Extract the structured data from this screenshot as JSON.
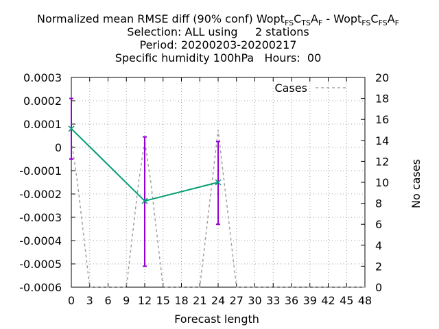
{
  "chart_data": {
    "type": "line",
    "title": {
      "line1_main": "Normalized mean RMSE diff (90% conf) Wopt",
      "line1_sub1a": "FS",
      "line1_mid1": "C",
      "line1_sub1b": "TS",
      "line1_mid2": "A",
      "line1_sub1c": "F",
      "line1_sep": " - Wopt",
      "line1_sub2a": "FS",
      "line1_mid3": "C",
      "line1_sub2b": "FS",
      "line1_mid4": "A",
      "line1_sub2c": "F",
      "line2": "Selection: ALL using     2 stations",
      "line3": "Period: 20200203-20200217",
      "line4": "Specific humidity 100hPa   Hours:  00"
    },
    "xlabel": "Forecast length",
    "ylabel_right": "No cases",
    "x_ticks": [
      "0",
      "3",
      "6",
      "9",
      "12",
      "15",
      "18",
      "21",
      "24",
      "27",
      "30",
      "33",
      "36",
      "39",
      "42",
      "45",
      "48"
    ],
    "y_ticks_left": [
      "0.0003",
      "0.0002",
      "0.0001",
      "0",
      "-0.0001",
      "-0.0002",
      "-0.0003",
      "-0.0004",
      "-0.0005",
      "-0.0006"
    ],
    "y_ticks_right": [
      "20",
      "18",
      "16",
      "14",
      "12",
      "10",
      "8",
      "6",
      "4",
      "2",
      "0"
    ],
    "xlim": [
      0,
      48
    ],
    "ylim_left": [
      -0.0006,
      0.0003
    ],
    "ylim_right": [
      0,
      20
    ],
    "grid": true,
    "legend_position": "top-right",
    "series": [
      {
        "name": "",
        "color": "#009e73",
        "error_color": "#9400d3",
        "x": [
          0,
          12,
          24
        ],
        "y": [
          8e-05,
          -0.00023,
          -0.00015
        ],
        "err_low": [
          -5e-05,
          -0.00051,
          -0.00033
        ],
        "err_high": [
          0.00021,
          4.5e-05,
          2.5e-05
        ]
      },
      {
        "name": "Cases",
        "color": "#a0a0a0",
        "dashed": true,
        "axis": "right",
        "x": [
          0,
          1,
          3,
          9,
          11,
          12,
          13,
          15,
          21,
          23,
          24,
          25,
          27,
          48
        ],
        "y": [
          14,
          10,
          0,
          0,
          10,
          14,
          10,
          0,
          0,
          10,
          15,
          10,
          0,
          0
        ]
      }
    ]
  }
}
